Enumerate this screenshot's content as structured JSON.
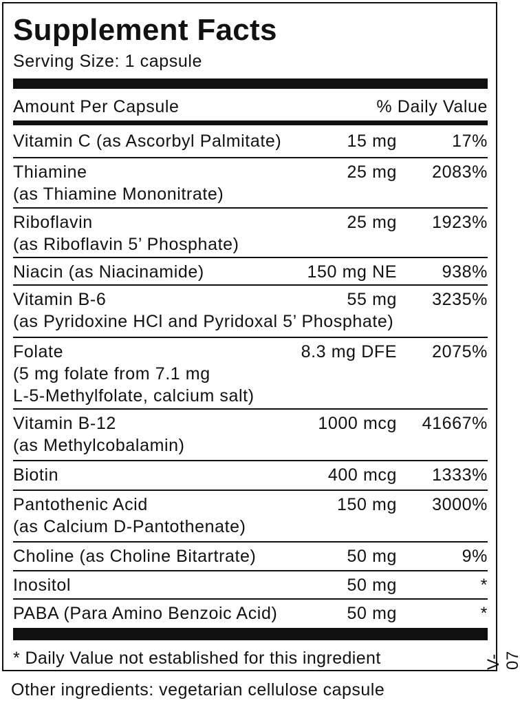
{
  "title": "Supplement Facts",
  "serving_size": "Serving Size: 1 capsule",
  "header": {
    "amount": "Amount Per Capsule",
    "dv": "% Daily Value"
  },
  "rows": [
    {
      "lines": [
        "Vitamin C (as Ascorbyl Palmitate)"
      ],
      "amount": "15 mg",
      "dv": "17%"
    },
    {
      "lines": [
        "Thiamine",
        "(as Thiamine Mononitrate)"
      ],
      "amount": "25 mg",
      "dv": "2083%"
    },
    {
      "lines": [
        "Riboflavin",
        "(as Riboflavin 5’ Phosphate)"
      ],
      "amount": "25 mg",
      "dv": "1923%"
    },
    {
      "lines": [
        "Niacin (as Niacinamide)"
      ],
      "amount": "150 mg NE",
      "dv": "938%"
    },
    {
      "lines": [
        "Vitamin B-6",
        "(as Pyridoxine HCl and Pyridoxal 5’ Phosphate)"
      ],
      "amount": "55 mg",
      "dv": "3235%"
    },
    {
      "lines": [
        "Folate",
        "(5 mg folate from 7.1 mg",
        "L-5-Methylfolate, calcium salt)"
      ],
      "amount": "8.3 mg DFE",
      "dv": "2075%"
    },
    {
      "lines": [
        "Vitamin B-12",
        "(as Methylcobalamin)"
      ],
      "amount": "1000 mcg",
      "dv": "41667%"
    },
    {
      "lines": [
        "Biotin"
      ],
      "amount": "400 mcg",
      "dv": "1333%"
    },
    {
      "lines": [
        "Pantothenic Acid",
        "(as Calcium D-Pantothenate)"
      ],
      "amount": "150 mg",
      "dv": "3000%"
    },
    {
      "lines": [
        "Choline (as Choline Bitartrate)"
      ],
      "amount": "50 mg",
      "dv": "9%"
    },
    {
      "lines": [
        "Inositol"
      ],
      "amount": "50 mg",
      "dv": "*"
    },
    {
      "lines": [
        "PABA (Para Amino Benzoic Acid)"
      ],
      "amount": "50 mg",
      "dv": "*"
    }
  ],
  "footnote": "* Daily Value not established for this ingredient",
  "version": "V-07",
  "other_ingredients": "Other ingredients: vegetarian cellulose capsule"
}
